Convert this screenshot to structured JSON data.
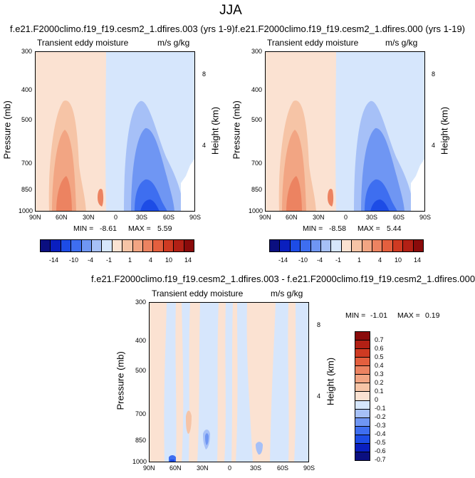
{
  "title": "JJA",
  "palette_12": [
    "#0b0f80",
    "#0a1fbf",
    "#1d4ce6",
    "#3e6ef0",
    "#6f96f3",
    "#a6c0f7",
    "#d6e6fc",
    "#fbe2d2",
    "#f6c4a6",
    "#f2a583",
    "#ec8361",
    "#e45f3e",
    "#cf3a22",
    "#b22015",
    "#8a0b0b"
  ],
  "chart_data": [
    {
      "type": "heatmap",
      "title": "f.e21.F2000climo.f19_f19.cesm2_1.dfires.003 (yrs 1-9)",
      "left_label": "Transient eddy moisture",
      "right_label": "m/s g/kg",
      "ylabel": "Pressure (mb)",
      "ylabel_right": "Height (km)",
      "x_ticks": [
        "90N",
        "60N",
        "30N",
        "0",
        "30S",
        "60S",
        "90S"
      ],
      "y_ticks": [
        "300",
        "400",
        "500",
        "700",
        "850",
        "1000"
      ],
      "height_ticks": [
        "8",
        "4"
      ],
      "min_label": "MIN =",
      "min": "-8.61",
      "max_label": "MAX =",
      "max": "5.59"
    },
    {
      "type": "heatmap",
      "title": "f.e21.F2000climo.f19_f19.cesm2_1.dfires.000 (yrs 1-19)",
      "left_label": "Transient eddy moisture",
      "right_label": "m/s g/kg",
      "ylabel": "Pressure (mb)",
      "ylabel_right": "Height (km)",
      "x_ticks": [
        "90N",
        "60N",
        "30N",
        "0",
        "30S",
        "60S",
        "90S"
      ],
      "y_ticks": [
        "300",
        "400",
        "500",
        "700",
        "850",
        "1000"
      ],
      "height_ticks": [
        "8",
        "4"
      ],
      "min_label": "MIN =",
      "min": "-8.58",
      "max_label": "MAX =",
      "max": "5.44"
    },
    {
      "type": "heatmap",
      "title": "f.e21.F2000climo.f19_f19.cesm2_1.dfires.003 - f.e21.F2000climo.f19_f19.cesm2_1.dfires.000",
      "left_label": "Transient eddy moisture",
      "right_label": "m/s g/kg",
      "ylabel": "Pressure (mb)",
      "ylabel_right": "Height (km)",
      "x_ticks": [
        "90N",
        "60N",
        "30N",
        "0",
        "30S",
        "60S",
        "90S"
      ],
      "y_ticks": [
        "300",
        "400",
        "500",
        "700",
        "850",
        "1000"
      ],
      "height_ticks": [
        "8",
        "4"
      ],
      "min_label": "MIN =",
      "min": "-1.01",
      "max_label": "MAX =",
      "max": "0.19"
    }
  ],
  "colorbar_main": {
    "labels": [
      "-14",
      "-10",
      "-4",
      "-1",
      "1",
      "4",
      "10",
      "14"
    ]
  },
  "colorbar_diff": {
    "labels": [
      "0.7",
      "0.6",
      "0.5",
      "0.4",
      "0.3",
      "0.2",
      "0.1",
      "0",
      "-0.1",
      "-0.2",
      "-0.3",
      "-0.4",
      "-0.5",
      "-0.6",
      "-0.7"
    ]
  }
}
